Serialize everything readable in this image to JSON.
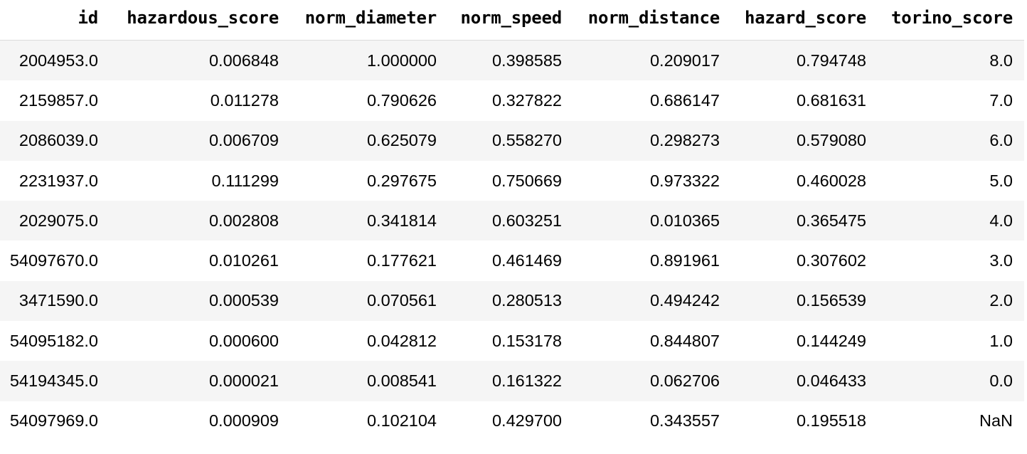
{
  "table": {
    "columns": [
      "id",
      "hazardous_score",
      "norm_diameter",
      "norm_speed",
      "norm_distance",
      "hazard_score",
      "torino_score"
    ],
    "rows": [
      [
        "2004953.0",
        "0.006848",
        "1.000000",
        "0.398585",
        "0.209017",
        "0.794748",
        "8.0"
      ],
      [
        "2159857.0",
        "0.011278",
        "0.790626",
        "0.327822",
        "0.686147",
        "0.681631",
        "7.0"
      ],
      [
        "2086039.0",
        "0.006709",
        "0.625079",
        "0.558270",
        "0.298273",
        "0.579080",
        "6.0"
      ],
      [
        "2231937.0",
        "0.111299",
        "0.297675",
        "0.750669",
        "0.973322",
        "0.460028",
        "5.0"
      ],
      [
        "2029075.0",
        "0.002808",
        "0.341814",
        "0.603251",
        "0.010365",
        "0.365475",
        "4.0"
      ],
      [
        "54097670.0",
        "0.010261",
        "0.177621",
        "0.461469",
        "0.891961",
        "0.307602",
        "3.0"
      ],
      [
        "3471590.0",
        "0.000539",
        "0.070561",
        "0.280513",
        "0.494242",
        "0.156539",
        "2.0"
      ],
      [
        "54095182.0",
        "0.000600",
        "0.042812",
        "0.153178",
        "0.844807",
        "0.144249",
        "1.0"
      ],
      [
        "54194345.0",
        "0.000021",
        "0.008541",
        "0.161322",
        "0.062706",
        "0.046433",
        "0.0"
      ],
      [
        "54097969.0",
        "0.000909",
        "0.102104",
        "0.429700",
        "0.343557",
        "0.195518",
        "NaN"
      ]
    ]
  }
}
